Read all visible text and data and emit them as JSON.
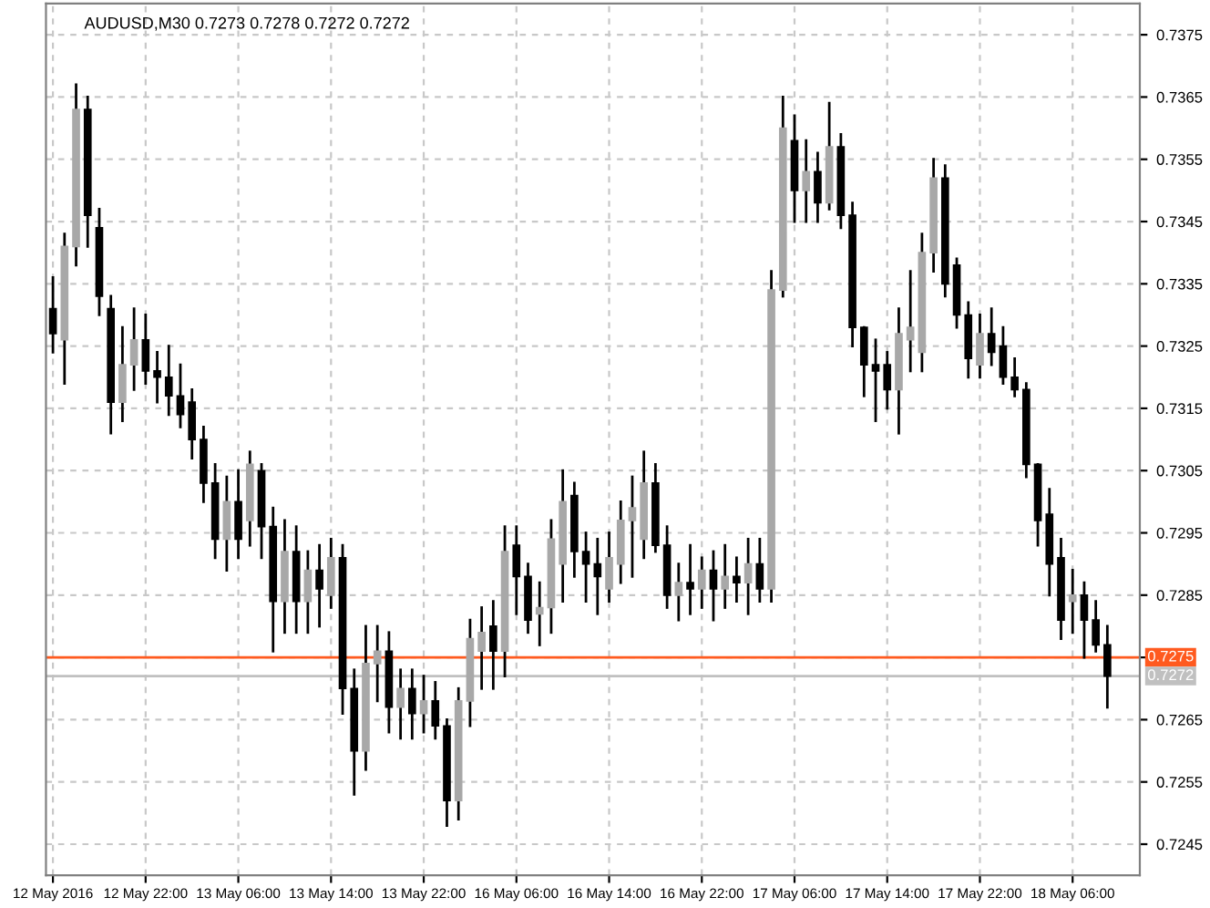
{
  "chart_data": {
    "type": "candlestick",
    "title": "AUDUSD,M30 0.7273 0.7278 0.7272 0.7272",
    "categories": [
      "12 May 2016",
      null,
      null,
      null,
      null,
      null,
      null,
      null,
      "12 May 22:00",
      null,
      null,
      null,
      null,
      null,
      null,
      null,
      "13 May 06:00",
      null,
      null,
      null,
      null,
      null,
      null,
      null,
      "13 May 14:00",
      null,
      null,
      null,
      null,
      null,
      null,
      null,
      "13 May 22:00",
      null,
      null,
      null,
      null,
      null,
      null,
      null,
      "16 May 06:00",
      null,
      null,
      null,
      null,
      null,
      null,
      null,
      "16 May 14:00",
      null,
      null,
      null,
      null,
      null,
      null,
      null,
      "16 May 22:00",
      null,
      null,
      null,
      null,
      null,
      null,
      null,
      "17 May 06:00",
      null,
      null,
      null,
      null,
      null,
      null,
      null,
      "17 May 14:00",
      null,
      null,
      null,
      null,
      null,
      null,
      null,
      "17 May 22:00",
      null,
      null,
      null,
      null,
      null,
      null,
      null,
      "18 May 06:00",
      null,
      null,
      null
    ],
    "ohlc": [
      [
        0.7331,
        0.7336,
        0.7324,
        0.7327
      ],
      [
        0.7326,
        0.7343,
        0.7319,
        0.7341
      ],
      [
        0.7341,
        0.7367,
        0.7338,
        0.7363
      ],
      [
        0.7363,
        0.7365,
        0.7341,
        0.7346
      ],
      [
        0.7344,
        0.7347,
        0.733,
        0.7333
      ],
      [
        0.7331,
        0.7333,
        0.7311,
        0.7316
      ],
      [
        0.7316,
        0.7328,
        0.7313,
        0.7322
      ],
      [
        0.7322,
        0.7331,
        0.7318,
        0.7326
      ],
      [
        0.7326,
        0.733,
        0.7319,
        0.7321
      ],
      [
        0.7321,
        0.7324,
        0.7316,
        0.732
      ],
      [
        0.732,
        0.7325,
        0.7314,
        0.7317
      ],
      [
        0.7317,
        0.7322,
        0.7312,
        0.7314
      ],
      [
        0.7316,
        0.7318,
        0.7307,
        0.731
      ],
      [
        0.731,
        0.7312,
        0.73,
        0.7303
      ],
      [
        0.7303,
        0.7306,
        0.7291,
        0.7294
      ],
      [
        0.7294,
        0.7304,
        0.7289,
        0.73
      ],
      [
        0.73,
        0.7305,
        0.7291,
        0.7294
      ],
      [
        0.7297,
        0.7308,
        0.7293,
        0.7306
      ],
      [
        0.7305,
        0.7306,
        0.7291,
        0.7296
      ],
      [
        0.7296,
        0.7299,
        0.7276,
        0.7284
      ],
      [
        0.7284,
        0.7297,
        0.7279,
        0.7292
      ],
      [
        0.7292,
        0.7296,
        0.7279,
        0.7284
      ],
      [
        0.7284,
        0.7292,
        0.7279,
        0.7289
      ],
      [
        0.7289,
        0.7293,
        0.728,
        0.7286
      ],
      [
        0.7285,
        0.7294,
        0.7283,
        0.7291
      ],
      [
        0.7291,
        0.7293,
        0.7266,
        0.727
      ],
      [
        0.727,
        0.7273,
        0.7253,
        0.726
      ],
      [
        0.726,
        0.728,
        0.7257,
        0.7274
      ],
      [
        0.7274,
        0.728,
        0.7268,
        0.7276
      ],
      [
        0.7276,
        0.7279,
        0.7263,
        0.7267
      ],
      [
        0.7267,
        0.7273,
        0.7262,
        0.727
      ],
      [
        0.727,
        0.7273,
        0.7262,
        0.7266
      ],
      [
        0.7266,
        0.7272,
        0.7263,
        0.7268
      ],
      [
        0.7268,
        0.7271,
        0.7262,
        0.7264
      ],
      [
        0.7264,
        0.7265,
        0.7248,
        0.7252
      ],
      [
        0.7252,
        0.727,
        0.7249,
        0.7268
      ],
      [
        0.7268,
        0.7281,
        0.7264,
        0.7278
      ],
      [
        0.7276,
        0.7283,
        0.727,
        0.7279
      ],
      [
        0.728,
        0.7284,
        0.727,
        0.7276
      ],
      [
        0.7276,
        0.7296,
        0.7272,
        0.7292
      ],
      [
        0.7293,
        0.7296,
        0.7282,
        0.7288
      ],
      [
        0.7288,
        0.729,
        0.7279,
        0.7281
      ],
      [
        0.7282,
        0.7287,
        0.7277,
        0.7283
      ],
      [
        0.7283,
        0.7297,
        0.7279,
        0.7294
      ],
      [
        0.729,
        0.7305,
        0.7284,
        0.73
      ],
      [
        0.7301,
        0.7303,
        0.7288,
        0.7292
      ],
      [
        0.7292,
        0.7295,
        0.7284,
        0.729
      ],
      [
        0.729,
        0.7294,
        0.7282,
        0.7288
      ],
      [
        0.7286,
        0.7295,
        0.7284,
        0.7291
      ],
      [
        0.729,
        0.73,
        0.7287,
        0.7297
      ],
      [
        0.7297,
        0.7304,
        0.7288,
        0.7299
      ],
      [
        0.7294,
        0.7308,
        0.7291,
        0.7303
      ],
      [
        0.7303,
        0.7306,
        0.7292,
        0.7293
      ],
      [
        0.7293,
        0.7296,
        0.7283,
        0.7285
      ],
      [
        0.7285,
        0.729,
        0.7281,
        0.7287
      ],
      [
        0.7287,
        0.7293,
        0.7282,
        0.7286
      ],
      [
        0.7286,
        0.7291,
        0.7283,
        0.7289
      ],
      [
        0.7289,
        0.7292,
        0.7281,
        0.7286
      ],
      [
        0.7286,
        0.7293,
        0.7283,
        0.7288
      ],
      [
        0.7288,
        0.7291,
        0.7284,
        0.7287
      ],
      [
        0.7287,
        0.7294,
        0.7282,
        0.729
      ],
      [
        0.729,
        0.7294,
        0.7284,
        0.7286
      ],
      [
        0.7286,
        0.7337,
        0.7284,
        0.7334
      ],
      [
        0.7334,
        0.7365,
        0.7333,
        0.736
      ],
      [
        0.7358,
        0.7362,
        0.7345,
        0.735
      ],
      [
        0.735,
        0.7358,
        0.7345,
        0.7353
      ],
      [
        0.7353,
        0.7356,
        0.7345,
        0.7348
      ],
      [
        0.7348,
        0.7364,
        0.7347,
        0.7357
      ],
      [
        0.7357,
        0.7359,
        0.7344,
        0.7346
      ],
      [
        0.7346,
        0.7348,
        0.7325,
        0.7328
      ],
      [
        0.7328,
        0.7328,
        0.7317,
        0.7322
      ],
      [
        0.7322,
        0.7326,
        0.7313,
        0.7321
      ],
      [
        0.7322,
        0.7324,
        0.7315,
        0.7318
      ],
      [
        0.7318,
        0.7331,
        0.7311,
        0.7327
      ],
      [
        0.7326,
        0.7337,
        0.7321,
        0.7328
      ],
      [
        0.7324,
        0.7343,
        0.7321,
        0.734
      ],
      [
        0.734,
        0.7355,
        0.7337,
        0.7352
      ],
      [
        0.7352,
        0.7354,
        0.7333,
        0.7335
      ],
      [
        0.7338,
        0.7339,
        0.7328,
        0.733
      ],
      [
        0.733,
        0.7332,
        0.732,
        0.7323
      ],
      [
        0.7322,
        0.733,
        0.732,
        0.7327
      ],
      [
        0.7327,
        0.7331,
        0.7322,
        0.7324
      ],
      [
        0.7325,
        0.7328,
        0.7319,
        0.732
      ],
      [
        0.732,
        0.7323,
        0.7317,
        0.7318
      ],
      [
        0.7318,
        0.7319,
        0.7304,
        0.7306
      ],
      [
        0.7306,
        0.7306,
        0.7293,
        0.7297
      ],
      [
        0.7298,
        0.7302,
        0.7285,
        0.729
      ],
      [
        0.7291,
        0.7294,
        0.7278,
        0.7281
      ],
      [
        0.7284,
        0.7289,
        0.7279,
        0.7285
      ],
      [
        0.7285,
        0.7287,
        0.7275,
        0.7281
      ],
      [
        0.7281,
        0.7284,
        0.7276,
        0.7277
      ],
      [
        0.7277,
        0.728,
        0.7267,
        0.7272
      ]
    ],
    "colors": [
      "#000000",
      "#a8a8a8",
      "#a8a8a8",
      "#000000",
      "#000000",
      "#000000",
      "#a8a8a8",
      "#a8a8a8",
      "#000000",
      "#000000",
      "#000000",
      "#000000",
      "#000000",
      "#000000",
      "#000000",
      "#a8a8a8",
      "#000000",
      "#a8a8a8",
      "#000000",
      "#000000",
      "#a8a8a8",
      "#000000",
      "#a8a8a8",
      "#000000",
      "#a8a8a8",
      "#000000",
      "#000000",
      "#a8a8a8",
      "#a8a8a8",
      "#000000",
      "#a8a8a8",
      "#000000",
      "#a8a8a8",
      "#000000",
      "#000000",
      "#a8a8a8",
      "#a8a8a8",
      "#a8a8a8",
      "#000000",
      "#a8a8a8",
      "#000000",
      "#000000",
      "#a8a8a8",
      "#a8a8a8",
      "#a8a8a8",
      "#000000",
      "#000000",
      "#000000",
      "#a8a8a8",
      "#a8a8a8",
      "#a8a8a8",
      "#a8a8a8",
      "#000000",
      "#000000",
      "#a8a8a8",
      "#000000",
      "#a8a8a8",
      "#000000",
      "#a8a8a8",
      "#000000",
      "#a8a8a8",
      "#000000",
      "#a8a8a8",
      "#a8a8a8",
      "#000000",
      "#a8a8a8",
      "#000000",
      "#a8a8a8",
      "#000000",
      "#000000",
      "#000000",
      "#000000",
      "#000000",
      "#a8a8a8",
      "#a8a8a8",
      "#a8a8a8",
      "#a8a8a8",
      "#000000",
      "#000000",
      "#000000",
      "#a8a8a8",
      "#000000",
      "#000000",
      "#000000",
      "#000000",
      "#000000",
      "#000000",
      "#000000",
      "#a8a8a8",
      "#000000",
      "#000000",
      "#000000"
    ],
    "ylim": [
      0.724,
      0.738
    ],
    "yticks": [
      0.7245,
      0.7255,
      0.7265,
      {
        "value": 0.7275,
        "label": null
      },
      0.7285,
      0.7295,
      0.7305,
      0.7315,
      0.7325,
      0.7335,
      0.7345,
      0.7355,
      0.7365,
      0.7375
    ],
    "ref_lines": [
      {
        "axis": "y",
        "value": 0.7275,
        "label": "0.7275",
        "color": "#ff5a1f"
      },
      {
        "axis": "y",
        "value": 0.7272,
        "label": "0.7272",
        "color": "#c0c0c0"
      }
    ],
    "grid": true
  }
}
